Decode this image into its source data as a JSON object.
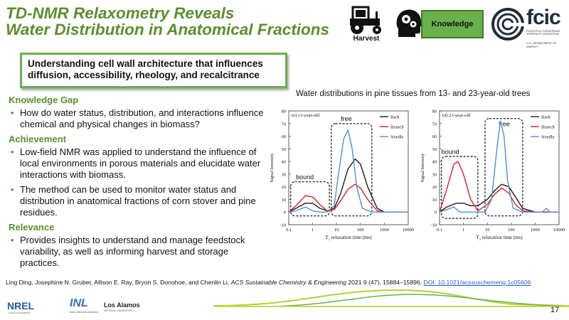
{
  "title": {
    "line1": "TD-NMR Relaxometry Reveals",
    "line2": "Water Distribution in Anatomical Fractions"
  },
  "header": {
    "harvest_label": "Harvest",
    "knowledge_label": "Knowledge",
    "fcic_logo_text": "fcic",
    "fcic_small_text": "FEEDSTOCK CONVERSION INTERFACE CONSORTIUM",
    "fcic_doe_text": "U.S. DEPARTMENT OF ENERGY"
  },
  "banner": {
    "text": "Understanding cell wall architecture that influences diffusion, accessibility, rheology, and recalcitrance"
  },
  "sections": [
    {
      "heading": "Knowledge Gap",
      "bullets": [
        "How do water status, distribution, and interactions influence chemical and physical changes in biomass?"
      ]
    },
    {
      "heading": "Achievement",
      "bullets": [
        "Low-field NMR was applied to understand the influence of local environments in porous materials and elucidate water interactions with biomass.",
        "The method can be used to monitor water status and distribution in anatomical fractions of corn stover and pine residues."
      ]
    },
    {
      "heading": "Relevance",
      "bullets": [
        "Provides insights to understand and manage feedstock variability, as well as informing harvest and storage practices."
      ]
    }
  ],
  "bullet_symbol": "•",
  "figure_caption": "Water distributions in pine tissues from 13- and 23-year-old trees",
  "chart_data": [
    {
      "type": "line",
      "panel_label": "(e) 13-year-old",
      "xlabel": "T₂ relaxation time (ms)",
      "ylabel": "Signal Intensity",
      "xscale": "log",
      "xlim": [
        0.1,
        10000
      ],
      "ylim": [
        -10,
        80
      ],
      "x_ticks": [
        "0.1",
        "1",
        "10",
        "100",
        "1000",
        "10000"
      ],
      "y_ticks": [
        "-10",
        "0",
        "10",
        "20",
        "30",
        "40",
        "50",
        "60",
        "70",
        "80"
      ],
      "annotations": [
        "bound",
        "free"
      ],
      "series": [
        {
          "name": "Bark",
          "color": "#1a1a1a",
          "points": [
            [
              0.1,
              0
            ],
            [
              0.2,
              3
            ],
            [
              0.5,
              7
            ],
            [
              1,
              7
            ],
            [
              2,
              3
            ],
            [
              4,
              1
            ],
            [
              8,
              3
            ],
            [
              15,
              15
            ],
            [
              30,
              34
            ],
            [
              60,
              42
            ],
            [
              100,
              38
            ],
            [
              200,
              20
            ],
            [
              500,
              3
            ],
            [
              1000,
              0
            ],
            [
              10000,
              0
            ]
          ]
        },
        {
          "name": "Branch",
          "color": "#e02020",
          "points": [
            [
              0.1,
              0
            ],
            [
              0.2,
              5
            ],
            [
              0.5,
              13
            ],
            [
              1,
              12
            ],
            [
              2,
              6
            ],
            [
              4,
              1
            ],
            [
              8,
              2
            ],
            [
              15,
              9
            ],
            [
              30,
              18
            ],
            [
              60,
              22
            ],
            [
              100,
              19
            ],
            [
              200,
              10
            ],
            [
              500,
              1
            ],
            [
              1000,
              0
            ],
            [
              10000,
              0
            ]
          ]
        },
        {
          "name": "Needle",
          "color": "#4a90d9",
          "points": [
            [
              0.1,
              0
            ],
            [
              0.2,
              1
            ],
            [
              0.5,
              4
            ],
            [
              1,
              1
            ],
            [
              2,
              0
            ],
            [
              4,
              0
            ],
            [
              8,
              5
            ],
            [
              12,
              30
            ],
            [
              20,
              58
            ],
            [
              30,
              65
            ],
            [
              45,
              50
            ],
            [
              70,
              20
            ],
            [
              120,
              3
            ],
            [
              300,
              0
            ],
            [
              10000,
              0
            ]
          ]
        }
      ]
    },
    {
      "type": "line",
      "panel_label": "(d) 23-year-old",
      "xlabel": "T₂ relaxation time (ms)",
      "ylabel": "Signal Intensity",
      "xscale": "log",
      "xlim": [
        0.1,
        10000
      ],
      "ylim": [
        -10,
        80
      ],
      "x_ticks": [
        "0.1",
        "1",
        "10",
        "100",
        "1000",
        "10000"
      ],
      "y_ticks": [
        "-10",
        "0",
        "10",
        "20",
        "30",
        "40",
        "50",
        "60",
        "70",
        "80"
      ],
      "annotations": [
        "bound",
        "free"
      ],
      "series": [
        {
          "name": "Bark",
          "color": "#1a1a1a",
          "points": [
            [
              0.1,
              0
            ],
            [
              0.2,
              4
            ],
            [
              0.5,
              7
            ],
            [
              1,
              7
            ],
            [
              2,
              5
            ],
            [
              4,
              5
            ],
            [
              10,
              10
            ],
            [
              20,
              17
            ],
            [
              40,
              22
            ],
            [
              80,
              20
            ],
            [
              150,
              12
            ],
            [
              300,
              3
            ],
            [
              1000,
              0
            ],
            [
              10000,
              0
            ]
          ]
        },
        {
          "name": "Branch",
          "color": "#e02020",
          "points": [
            [
              0.1,
              0
            ],
            [
              0.2,
              18
            ],
            [
              0.4,
              38
            ],
            [
              0.6,
              40
            ],
            [
              1,
              30
            ],
            [
              2,
              10
            ],
            [
              4,
              1
            ],
            [
              10,
              6
            ],
            [
              20,
              14
            ],
            [
              40,
              19
            ],
            [
              80,
              15
            ],
            [
              150,
              6
            ],
            [
              300,
              1
            ],
            [
              1000,
              0
            ],
            [
              10000,
              0
            ]
          ]
        },
        {
          "name": "Needle",
          "color": "#4a90d9",
          "points": [
            [
              0.1,
              0
            ],
            [
              0.2,
              2
            ],
            [
              0.4,
              4
            ],
            [
              0.7,
              0
            ],
            [
              2,
              0
            ],
            [
              8,
              0
            ],
            [
              15,
              10
            ],
            [
              25,
              50
            ],
            [
              35,
              72
            ],
            [
              50,
              60
            ],
            [
              70,
              25
            ],
            [
              120,
              3
            ],
            [
              300,
              0
            ],
            [
              2000,
              0
            ],
            [
              3000,
              3
            ],
            [
              4000,
              0
            ],
            [
              10000,
              0
            ]
          ]
        }
      ]
    }
  ],
  "citation": {
    "authors": "Ling Ding, Josephine N. Gruber, Allison E. Ray, Bryon S. Donohoe, and Chenlin Li, ",
    "journal": "ACS Sustainable Chemistry & Engineering",
    "details": " 2021 9 (47), 15884–15896, ",
    "doi": "DOI: 10.1021/acssuschemeng.1c05606"
  },
  "footer": {
    "nrel": "NREL",
    "nrel_sub": "Transforming ENERGY",
    "inl": "INL",
    "inl_sub": "Idaho National Laboratory",
    "la": "Los Alamos",
    "la_sub": "NATIONAL LABORATORY",
    "page_number": "17"
  }
}
